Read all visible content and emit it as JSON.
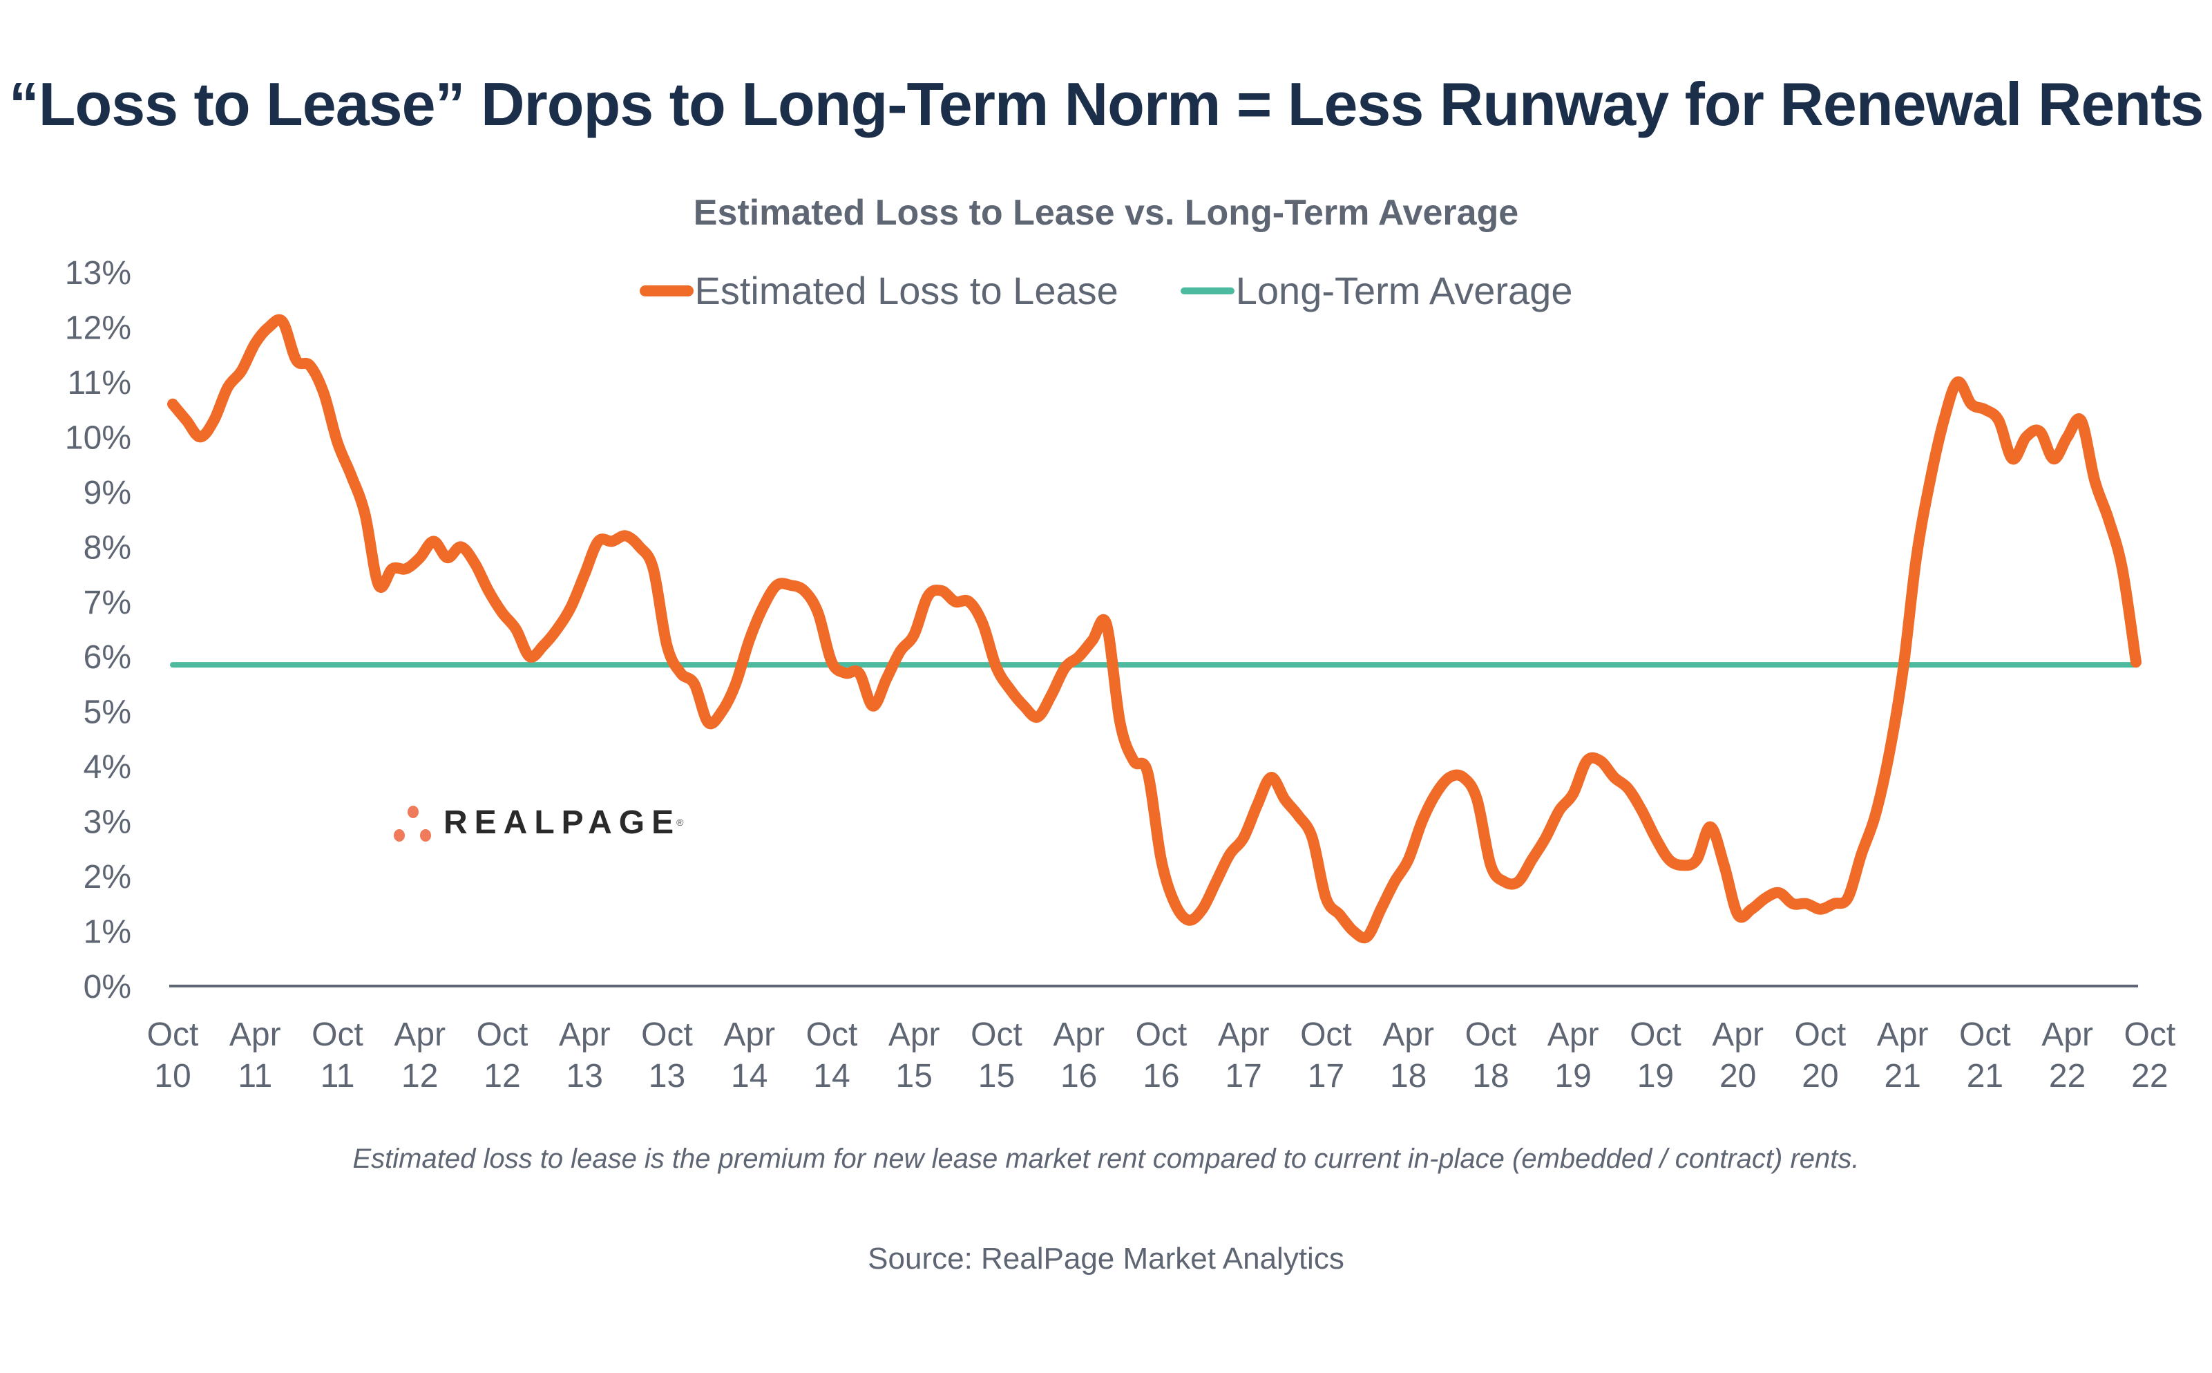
{
  "title": "“Loss to Lease” Drops to Long-Term Norm = Less Runway for Renewal Rents",
  "logo": {
    "text": "REALPAGE",
    "registered": "®",
    "dot_color": "#ef7b5a"
  },
  "footnote": "Estimated loss to lease is the premium for new lease market rent compared to current in-place (embedded / contract) rents.",
  "source": "Source: RealPage Market Analytics",
  "colors": {
    "series": "#ef6b27",
    "average": "#4cba9e",
    "axis": "#5e6573",
    "title": "#1c2f4a"
  },
  "chart_data": {
    "type": "line",
    "title": "Estimated Loss to Lease vs. Long-Term Average",
    "xlabel": "",
    "ylabel": "",
    "ylim": [
      0,
      13
    ],
    "y_ticks": [
      "0%",
      "1%",
      "2%",
      "3%",
      "4%",
      "5%",
      "6%",
      "7%",
      "8%",
      "9%",
      "10%",
      "11%",
      "12%",
      "13%"
    ],
    "x_ticks": [
      {
        "top": "Oct",
        "bottom": "10"
      },
      {
        "top": "Apr",
        "bottom": "11"
      },
      {
        "top": "Oct",
        "bottom": "11"
      },
      {
        "top": "Apr",
        "bottom": "12"
      },
      {
        "top": "Oct",
        "bottom": "12"
      },
      {
        "top": "Apr",
        "bottom": "13"
      },
      {
        "top": "Oct",
        "bottom": "13"
      },
      {
        "top": "Apr",
        "bottom": "14"
      },
      {
        "top": "Oct",
        "bottom": "14"
      },
      {
        "top": "Apr",
        "bottom": "15"
      },
      {
        "top": "Oct",
        "bottom": "15"
      },
      {
        "top": "Apr",
        "bottom": "16"
      },
      {
        "top": "Oct",
        "bottom": "16"
      },
      {
        "top": "Apr",
        "bottom": "17"
      },
      {
        "top": "Oct",
        "bottom": "17"
      },
      {
        "top": "Apr",
        "bottom": "18"
      },
      {
        "top": "Oct",
        "bottom": "18"
      },
      {
        "top": "Apr",
        "bottom": "19"
      },
      {
        "top": "Oct",
        "bottom": "19"
      },
      {
        "top": "Apr",
        "bottom": "20"
      },
      {
        "top": "Oct",
        "bottom": "20"
      },
      {
        "top": "Apr",
        "bottom": "21"
      },
      {
        "top": "Oct",
        "bottom": "21"
      },
      {
        "top": "Apr",
        "bottom": "22"
      },
      {
        "top": "Oct",
        "bottom": "22"
      }
    ],
    "x_start": "Oct 2010",
    "x_end": "Oct 2022",
    "frequency": "monthly",
    "legend_position": "top-center",
    "grid": false,
    "series": [
      {
        "name": "Estimated Loss to Lease",
        "values": [
          10.6,
          10.3,
          10.0,
          10.3,
          10.9,
          11.2,
          11.7,
          12.0,
          12.1,
          11.4,
          11.3,
          10.8,
          9.9,
          9.3,
          8.6,
          7.3,
          7.6,
          7.6,
          7.8,
          8.1,
          7.8,
          8.0,
          7.7,
          7.2,
          6.8,
          6.5,
          6.0,
          6.2,
          6.5,
          6.9,
          7.5,
          8.1,
          8.1,
          8.2,
          8.0,
          7.6,
          6.2,
          5.7,
          5.5,
          4.8,
          5.0,
          5.5,
          6.3,
          6.9,
          7.3,
          7.3,
          7.2,
          6.8,
          5.9,
          5.7,
          5.7,
          5.1,
          5.6,
          6.1,
          6.4,
          7.1,
          7.2,
          7.0,
          7.0,
          6.6,
          5.8,
          5.4,
          5.1,
          4.9,
          5.3,
          5.8,
          6.0,
          6.3,
          6.6,
          4.8,
          4.1,
          3.9,
          2.3,
          1.5,
          1.2,
          1.4,
          1.9,
          2.4,
          2.7,
          3.3,
          3.8,
          3.4,
          3.1,
          2.7,
          1.6,
          1.3,
          1.0,
          0.9,
          1.4,
          1.9,
          2.3,
          3.0,
          3.5,
          3.8,
          3.8,
          3.4,
          2.2,
          1.9,
          1.9,
          2.3,
          2.7,
          3.2,
          3.5,
          4.1,
          4.1,
          3.8,
          3.6,
          3.2,
          2.7,
          2.3,
          2.2,
          2.3,
          2.9,
          2.2,
          1.3,
          1.4,
          1.6,
          1.7,
          1.5,
          1.5,
          1.4,
          1.5,
          1.6,
          2.4,
          3.1,
          4.2,
          5.7,
          7.8,
          9.2,
          10.3,
          11.0,
          10.6,
          10.5,
          10.3,
          9.6,
          10.0,
          10.1,
          9.6,
          10.0,
          10.3,
          9.2,
          8.5,
          7.6,
          5.9
        ]
      },
      {
        "name": "Long-Term Average",
        "values": [
          5.85
        ],
        "constant": true
      }
    ]
  }
}
